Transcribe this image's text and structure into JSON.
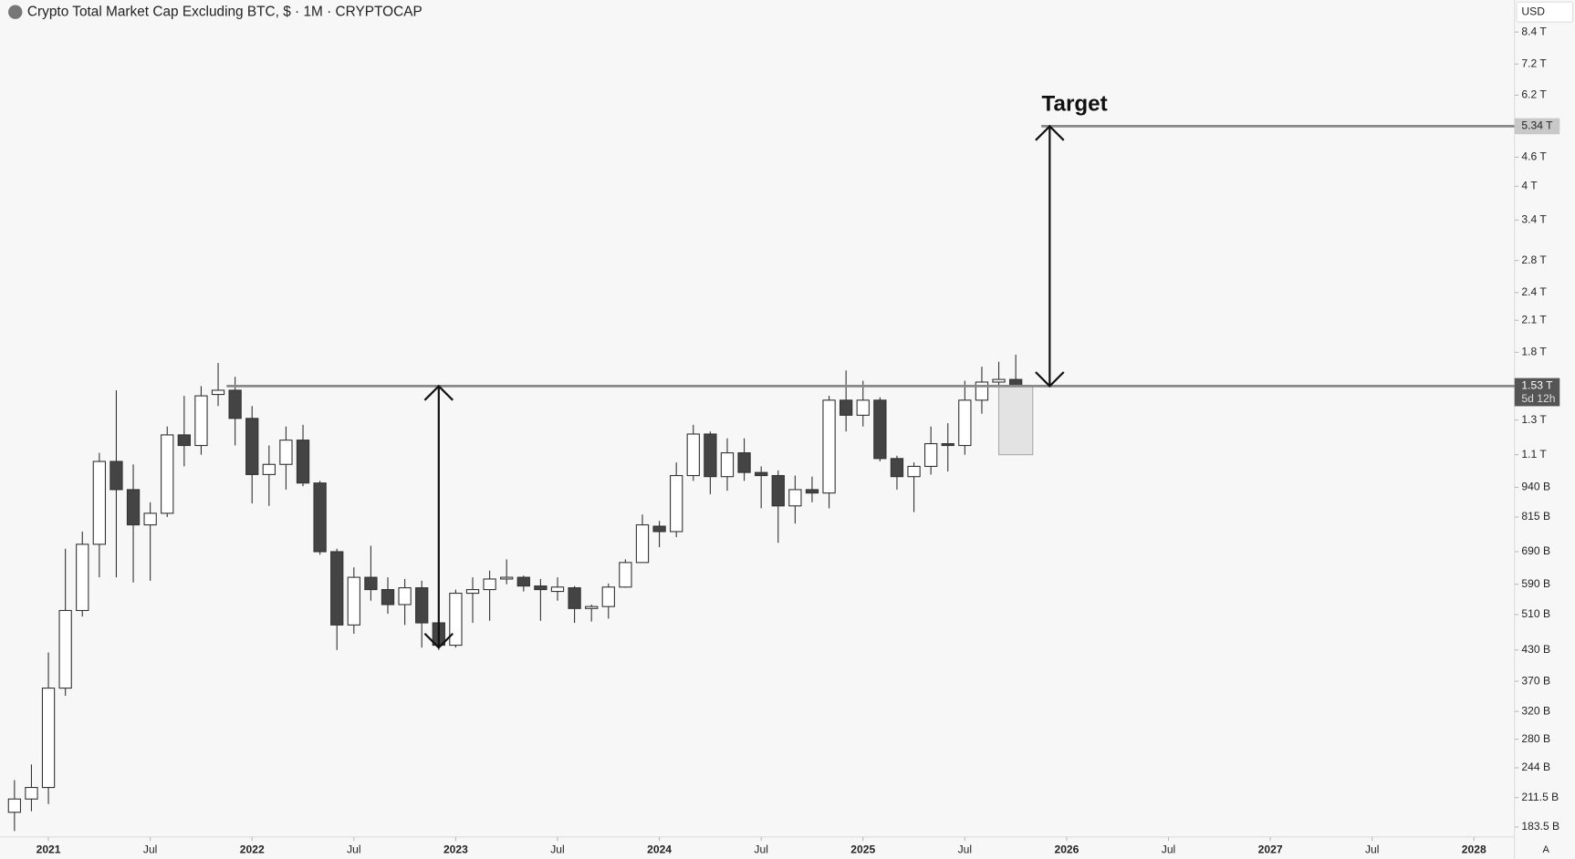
{
  "chart_data": {
    "type": "candlestick",
    "title": "Crypto Total Market Cap Excluding BTC, $ · 1M · CRYPTOCAP",
    "currency": "USD",
    "scale_mode": "A",
    "log_scale": true,
    "x": [
      "2020-11",
      "2020-12",
      "2021-01",
      "2021-02",
      "2021-03",
      "2021-04",
      "2021-05",
      "2021-06",
      "2021-07",
      "2021-08",
      "2021-09",
      "2021-10",
      "2021-11",
      "2021-12",
      "2022-01",
      "2022-02",
      "2022-03",
      "2022-04",
      "2022-05",
      "2022-06",
      "2022-07",
      "2022-08",
      "2022-09",
      "2022-10",
      "2022-11",
      "2022-12",
      "2023-01",
      "2023-02",
      "2023-03",
      "2023-04",
      "2023-05",
      "2023-06",
      "2023-07",
      "2023-08",
      "2023-09",
      "2023-10",
      "2023-11",
      "2023-12",
      "2024-01",
      "2024-02",
      "2024-03",
      "2024-04",
      "2024-05",
      "2024-06",
      "2024-07",
      "2024-08",
      "2024-09",
      "2024-10",
      "2024-11",
      "2024-12",
      "2025-01",
      "2025-02",
      "2025-03",
      "2025-04",
      "2025-05",
      "2025-06",
      "2025-07",
      "2025-08",
      "2025-09",
      "2025-10"
    ],
    "open": [
      197,
      210,
      222,
      358,
      520,
      715,
      1065,
      930,
      785,
      830,
      1210,
      1150,
      1470,
      1500,
      1310,
      1000,
      1050,
      1180,
      960,
      690,
      485,
      610,
      575,
      535,
      580,
      490,
      440,
      565,
      575,
      605,
      610,
      585,
      570,
      580,
      525,
      530,
      582,
      655,
      780,
      760,
      995,
      1215,
      990,
      1110,
      1010,
      995,
      860,
      930,
      915,
      1430,
      1330,
      1430,
      1080,
      990,
      1040,
      1160,
      1150,
      1430,
      1560,
      1580
    ],
    "high": [
      230,
      248,
      425,
      700,
      760,
      1110,
      1500,
      1050,
      875,
      1260,
      1460,
      1530,
      1710,
      1600,
      1390,
      1150,
      1260,
      1270,
      970,
      700,
      640,
      710,
      610,
      605,
      600,
      500,
      575,
      610,
      630,
      665,
      615,
      605,
      610,
      585,
      535,
      592,
      665,
      825,
      800,
      1060,
      1270,
      1230,
      1190,
      1190,
      1040,
      1020,
      995,
      990,
      1460,
      1650,
      1570,
      1450,
      1095,
      1060,
      1260,
      1280,
      1570,
      1680,
      1720,
      1780
    ],
    "low": [
      180,
      198,
      205,
      345,
      505,
      610,
      610,
      595,
      600,
      815,
      1040,
      1100,
      1390,
      1150,
      870,
      860,
      930,
      945,
      680,
      430,
      465,
      545,
      512,
      485,
      435,
      430,
      435,
      490,
      495,
      590,
      570,
      495,
      545,
      490,
      493,
      500,
      580,
      655,
      705,
      740,
      970,
      910,
      925,
      970,
      850,
      720,
      790,
      875,
      850,
      1230,
      1260,
      1065,
      930,
      835,
      1000,
      1015,
      1100,
      1340,
      1500,
      1190
    ],
    "close": [
      210,
      222,
      358,
      520,
      715,
      1065,
      930,
      785,
      830,
      1210,
      1150,
      1460,
      1500,
      1310,
      1000,
      1050,
      1180,
      960,
      690,
      485,
      610,
      575,
      535,
      580,
      490,
      440,
      565,
      575,
      605,
      610,
      585,
      575,
      582,
      525,
      530,
      582,
      655,
      785,
      760,
      995,
      1215,
      990,
      1110,
      1010,
      995,
      860,
      930,
      915,
      1430,
      1330,
      1430,
      1080,
      990,
      1040,
      1160,
      1150,
      1430,
      1560,
      1580,
      1530
    ],
    "up_color": "#ffffff",
    "down_color": "#444444",
    "ylim": [
      175,
      9800
    ],
    "yticks": [
      {
        "value": 8400,
        "label": "8.4 T"
      },
      {
        "value": 7200,
        "label": "7.2 T"
      },
      {
        "value": 6200,
        "label": "6.2 T"
      },
      {
        "value": 4600,
        "label": "4.6 T"
      },
      {
        "value": 4000,
        "label": "4 T"
      },
      {
        "value": 3400,
        "label": "3.4 T"
      },
      {
        "value": 2800,
        "label": "2.8 T"
      },
      {
        "value": 2400,
        "label": "2.4 T"
      },
      {
        "value": 2100,
        "label": "2.1 T"
      },
      {
        "value": 1800,
        "label": "1.8 T"
      },
      {
        "value": 1300,
        "label": "1.3 T"
      },
      {
        "value": 1100,
        "label": "1.1 T"
      },
      {
        "value": 940,
        "label": "940 B"
      },
      {
        "value": 815,
        "label": "815 B"
      },
      {
        "value": 690,
        "label": "690 B"
      },
      {
        "value": 590,
        "label": "590 B"
      },
      {
        "value": 510,
        "label": "510 B"
      },
      {
        "value": 430,
        "label": "430 B"
      },
      {
        "value": 370,
        "label": "370 B"
      },
      {
        "value": 320,
        "label": "320 B"
      },
      {
        "value": 280,
        "label": "280 B"
      },
      {
        "value": 244,
        "label": "244 B"
      },
      {
        "value": 211.5,
        "label": "211.5 B"
      },
      {
        "value": 183.5,
        "label": "183.5 B"
      }
    ],
    "xticks": [
      {
        "value": "2021-01",
        "label": "2021"
      },
      {
        "value": "2021-07",
        "label": "Jul"
      },
      {
        "value": "2022-01",
        "label": "2022"
      },
      {
        "value": "2022-07",
        "label": "Jul"
      },
      {
        "value": "2023-01",
        "label": "2023"
      },
      {
        "value": "2023-07",
        "label": "Jul"
      },
      {
        "value": "2024-01",
        "label": "2024"
      },
      {
        "value": "2024-07",
        "label": "Jul"
      },
      {
        "value": "2025-01",
        "label": "2025"
      },
      {
        "value": "2025-07",
        "label": "Jul"
      },
      {
        "value": "2026-01",
        "label": "2026"
      },
      {
        "value": "2026-07",
        "label": "Jul"
      },
      {
        "value": "2027-01",
        "label": "2027"
      },
      {
        "value": "2027-07",
        "label": "Jul"
      },
      {
        "value": "2028-01",
        "label": "2028"
      }
    ],
    "levels": [
      {
        "value": 1530,
        "label": "1.53 T",
        "countdown": "5d 12h",
        "from": "2021-12"
      },
      {
        "value": 5340,
        "label": "5.34 T",
        "from": "2025-12"
      }
    ],
    "arrows": [
      {
        "x": "2022-12",
        "from": 435,
        "to": 1530
      },
      {
        "x": "2025-12",
        "from": 1530,
        "to": 5340
      }
    ],
    "target": {
      "text": "Target",
      "value": 5340,
      "x": "2025-12"
    },
    "highlight": {
      "x": [
        "2025-09",
        "2025-10"
      ],
      "range": [
        1100,
        1530
      ]
    }
  }
}
